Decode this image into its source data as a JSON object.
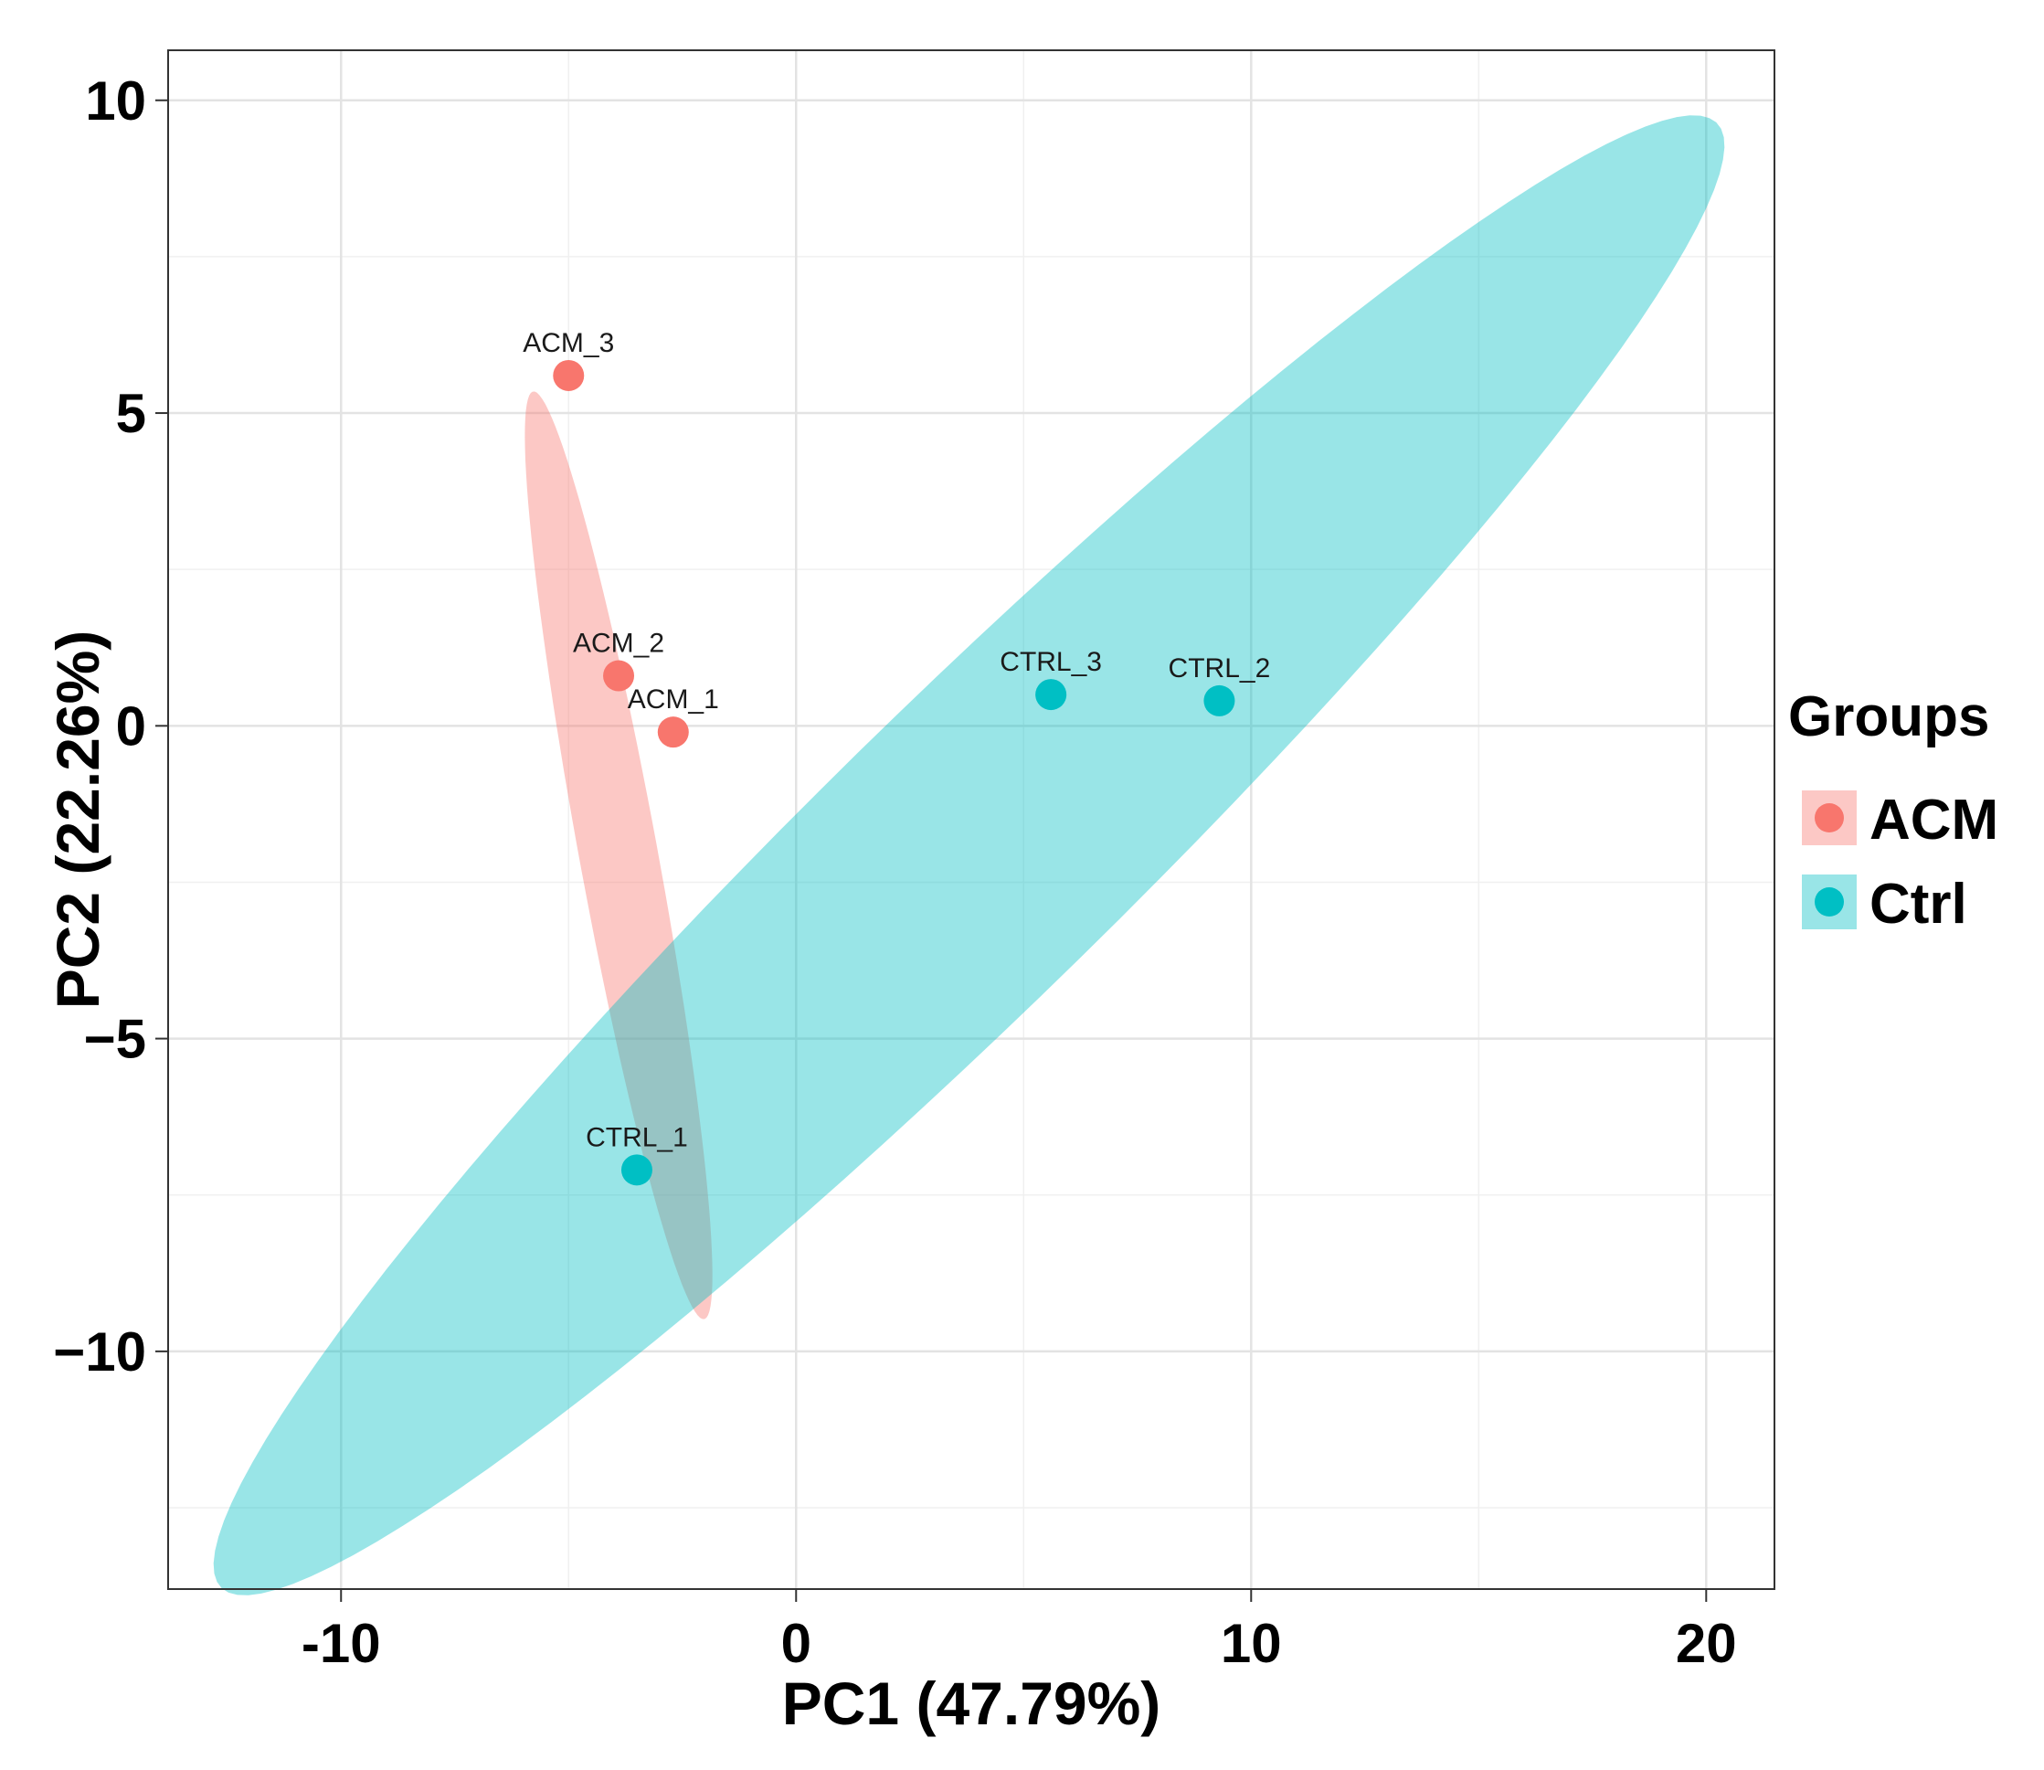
{
  "chart_data": {
    "type": "scatter",
    "xlabel": "PC1 (47.79%)",
    "ylabel": "PC2 (22.26%)",
    "xlim": [
      -13.8,
      21.5
    ],
    "ylim": [
      -13.8,
      10.8
    ],
    "x_ticks": [
      -10,
      0,
      10,
      20
    ],
    "y_ticks": [
      10,
      5,
      0,
      -5,
      -10
    ],
    "x_tick_labels": [
      "-10",
      "0",
      "10",
      "20"
    ],
    "y_tick_labels": [
      "10",
      "5",
      "0",
      "−5",
      "−10"
    ],
    "grid": true,
    "legend": {
      "title": "Groups",
      "position": "right",
      "entries": [
        {
          "label": "ACM",
          "color": "#F8766D",
          "fill": "#F8766D"
        },
        {
          "label": "Ctrl",
          "color": "#00BFC4",
          "fill": "#00BFC4"
        }
      ]
    },
    "series": [
      {
        "name": "ACM",
        "color": "#F8766D",
        "points": [
          {
            "label": "ACM_3",
            "x": -5.0,
            "y": 5.6
          },
          {
            "label": "ACM_2",
            "x": -3.9,
            "y": 0.8
          },
          {
            "label": "ACM_1",
            "x": -2.7,
            "y": -0.1
          }
        ],
        "ellipse": {
          "center": [
            -3.9,
            -2.07
          ],
          "semi_axes": [
            7.65,
            0.85
          ],
          "angle_deg": -75.7
        }
      },
      {
        "name": "Ctrl",
        "color": "#00BFC4",
        "points": [
          {
            "label": "CTRL_1",
            "x": -3.5,
            "y": -7.1
          },
          {
            "label": "CTRL_3",
            "x": 5.6,
            "y": 0.5
          },
          {
            "label": "CTRL_2",
            "x": 9.3,
            "y": 0.4
          }
        ],
        "ellipse": {
          "center": [
            3.8,
            -2.07
          ],
          "semi_axes": [
            20.2,
            2.75
          ],
          "angle_deg": 35.1
        }
      }
    ]
  }
}
